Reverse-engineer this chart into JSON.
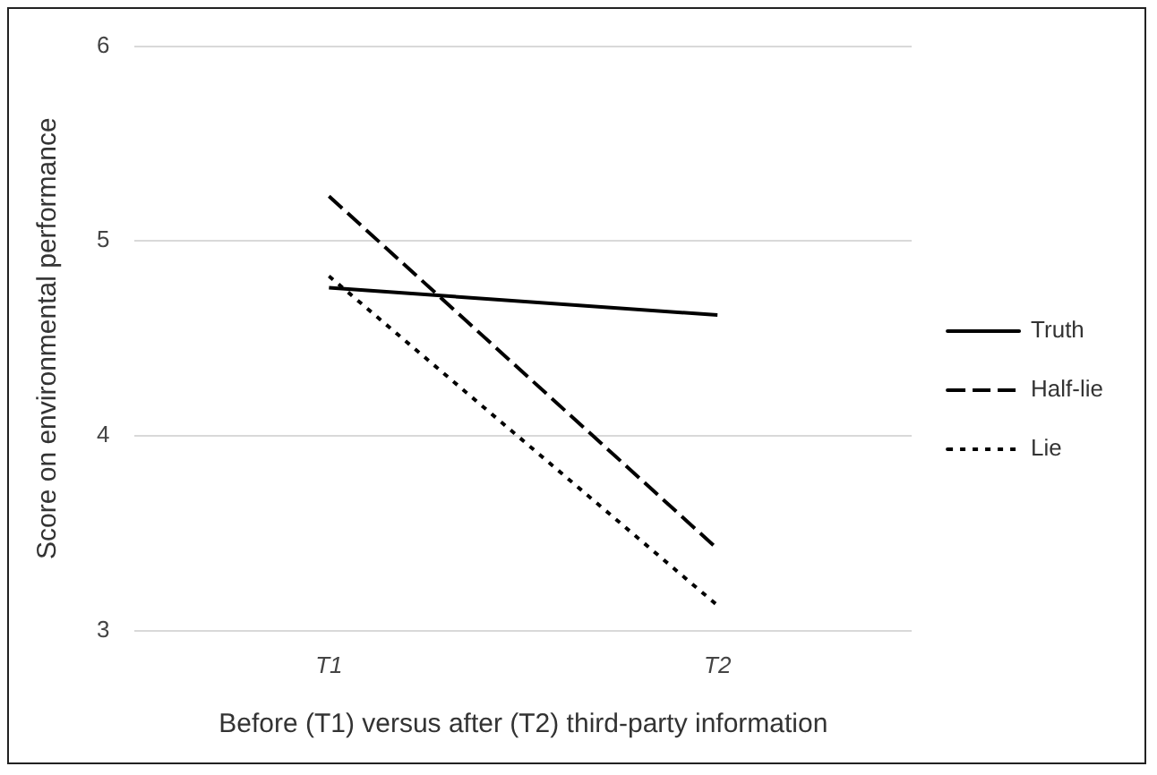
{
  "chart_data": {
    "type": "line",
    "xlabel": "Before (T1) versus after (T2) third-party information",
    "ylabel": "Score on environmental performance",
    "categories": [
      "T1",
      "T2"
    ],
    "series": [
      {
        "name": "Truth",
        "color": "#000000",
        "line_style": "solid",
        "values": [
          4.76,
          4.62
        ]
      },
      {
        "name": "Half-lie",
        "color": "#000000",
        "line_style": "dashed",
        "values": [
          5.23,
          3.42
        ]
      },
      {
        "name": "Lie",
        "color": "#000000",
        "line_style": "dotted",
        "values": [
          4.82,
          3.13
        ]
      }
    ],
    "ylim": [
      3,
      6
    ],
    "yticks": [
      3,
      4,
      5,
      6
    ],
    "grid": "y",
    "legend": "right",
    "marker": "none"
  }
}
